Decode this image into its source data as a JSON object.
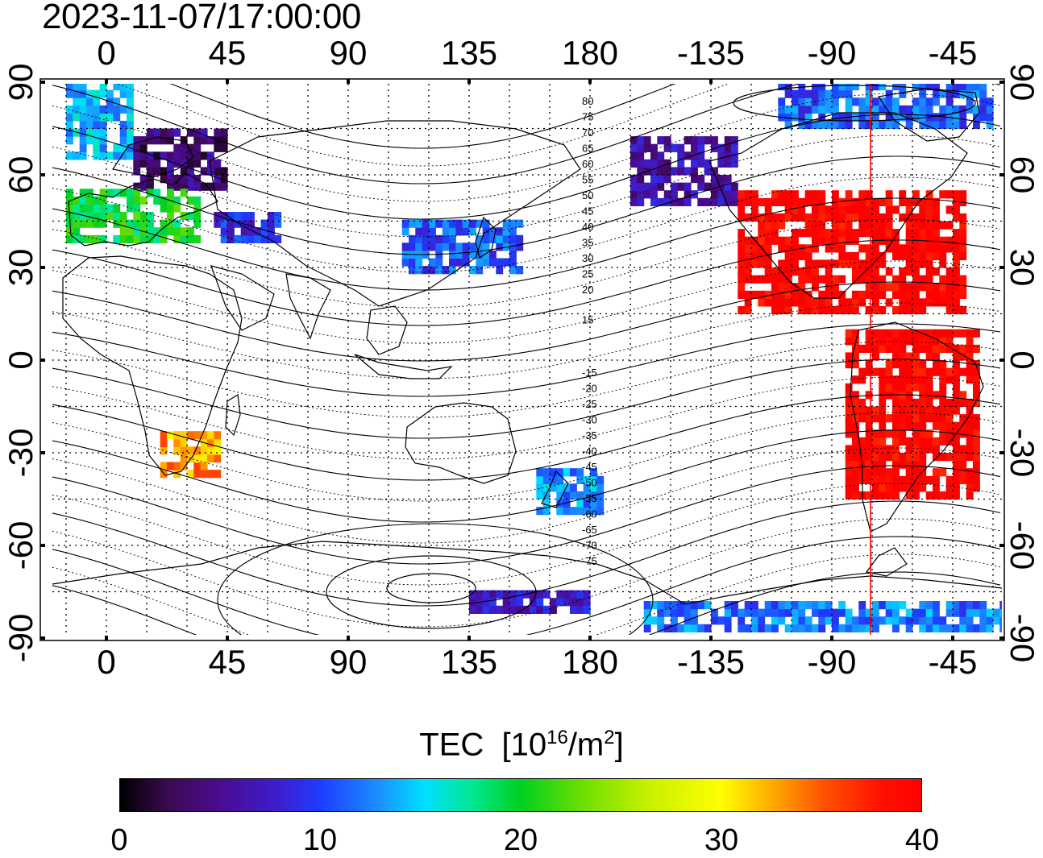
{
  "title": "2023-11-07/17:00:00",
  "axes": {
    "lon_ticks_top": [
      "0",
      "45",
      "90",
      "135",
      "180",
      "-135",
      "-90",
      "-45"
    ],
    "lon_ticks_bottom": [
      "0",
      "45",
      "90",
      "135",
      "180",
      "-135",
      "-90",
      "-45"
    ],
    "lat_ticks_left": [
      "90",
      "60",
      "30",
      "0",
      "-30",
      "-60",
      "-90"
    ],
    "lat_ticks_right": [
      "90",
      "60",
      "30",
      "0",
      "-30",
      "-60",
      "-90"
    ]
  },
  "contour_labels_north": [
    "80",
    "75",
    "70",
    "65",
    "60",
    "55",
    "50",
    "45",
    "40",
    "35",
    "30",
    "25",
    "20",
    "15"
  ],
  "contour_labels_south": [
    "-15",
    "-20",
    "-25",
    "-30",
    "-35",
    "-40",
    "-45",
    "-50",
    "-55",
    "-60",
    "-65",
    "-70",
    "-75"
  ],
  "colorbar": {
    "label": "TEC",
    "unit_prefix": "[10",
    "unit_exp": "16",
    "unit_mid": "/m",
    "unit_exp2": "2",
    "unit_suffix": "]",
    "ticks": [
      "0",
      "10",
      "20",
      "30",
      "40"
    ],
    "min": 0,
    "max": 40
  },
  "colors": {
    "high_tec": "#ff0000",
    "low_tec": "#3c1fb0",
    "terminator_line": "#ff0000"
  },
  "chart_data": {
    "type": "heatmap",
    "title": "2023-11-07/17:00:00",
    "xlabel": "",
    "ylabel": "",
    "xlim": [
      -20,
      340
    ],
    "ylim": [
      -90,
      90
    ],
    "grid": true,
    "regions": [
      {
        "lon": [
          -15,
          10
        ],
        "lat": [
          65,
          88
        ],
        "tec": 14
      },
      {
        "lon": [
          10,
          45
        ],
        "lat": [
          55,
          75
        ],
        "tec": 4
      },
      {
        "lon": [
          -15,
          35
        ],
        "lat": [
          38,
          55
        ],
        "tec": 20
      },
      {
        "lon": [
          40,
          65
        ],
        "lat": [
          38,
          48
        ],
        "tec": 9
      },
      {
        "lon": [
          20,
          42
        ],
        "lat": [
          -38,
          -25
        ],
        "tec": 33
      },
      {
        "lon": [
          110,
          155
        ],
        "lat": [
          28,
          45
        ],
        "tec": 11
      },
      {
        "lon": [
          195,
          235
        ],
        "lat": [
          50,
          72
        ],
        "tec": 6
      },
      {
        "lon": [
          235,
          320
        ],
        "lat": [
          15,
          55
        ],
        "tec": 40
      },
      {
        "lon": [
          275,
          325
        ],
        "lat": [
          -45,
          10
        ],
        "tec": 40
      },
      {
        "lon": [
          250,
          330
        ],
        "lat": [
          75,
          88
        ],
        "tec": 11
      },
      {
        "lon": [
          160,
          185
        ],
        "lat": [
          -50,
          -35
        ],
        "tec": 13
      },
      {
        "lon": [
          135,
          180
        ],
        "lat": [
          -82,
          -75
        ],
        "tec": 7
      },
      {
        "lon": [
          200,
          340
        ],
        "lat": [
          -88,
          -78
        ],
        "tec": 12
      }
    ],
    "colorbar_range": [
      0,
      40
    ]
  }
}
